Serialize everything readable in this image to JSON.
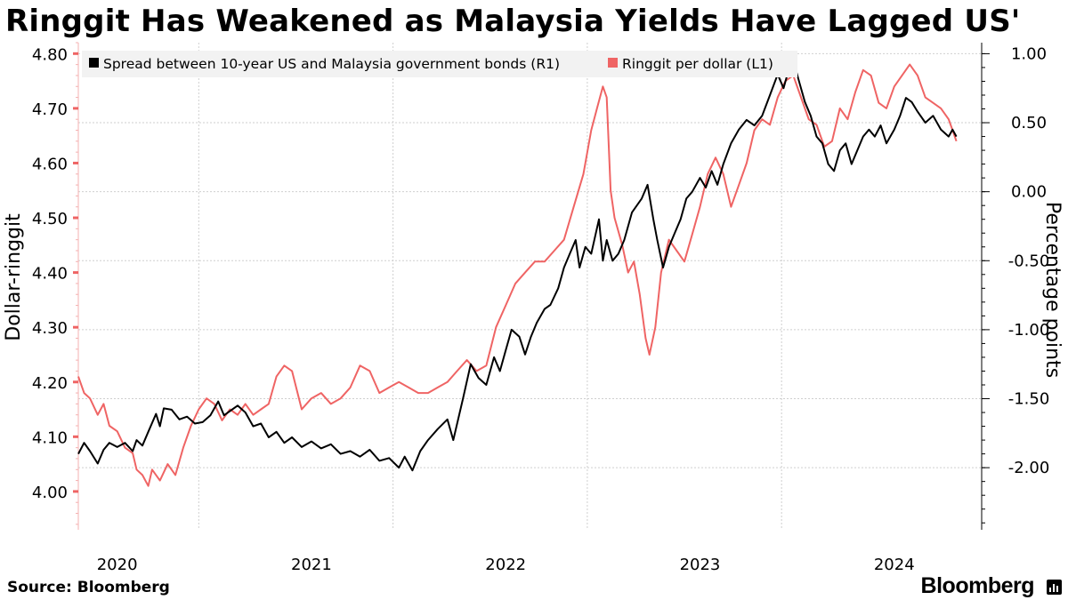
{
  "title": "Ringgit Has Weakened as Malaysia Yields Have Lagged US'",
  "source": "Source: Bloomberg",
  "brand": "Bloomberg",
  "colors": {
    "spread": "#000000",
    "ringgit": "#ef6464",
    "grid": "#cfcfcf",
    "legend_bg": "#f2f2f2"
  },
  "chart_data": {
    "type": "line",
    "x_range": [
      2019.8,
      2024.45
    ],
    "x_ticks": [
      {
        "label": "2020",
        "x": 2020.0
      },
      {
        "label": "2021",
        "x": 2021.0
      },
      {
        "label": "2022",
        "x": 2022.0
      },
      {
        "label": "2023",
        "x": 2023.0
      },
      {
        "label": "2024",
        "x": 2024.0
      }
    ],
    "x_separators": [
      2020.42,
      2021.42,
      2022.42,
      2023.42
    ],
    "left_axis": {
      "label": "Dollar-ringgit",
      "range": [
        3.93,
        4.82
      ],
      "ticks": [
        "4.00",
        "4.10",
        "4.20",
        "4.30",
        "4.40",
        "4.50",
        "4.60",
        "4.70",
        "4.80"
      ]
    },
    "right_axis": {
      "label": "Percentage points",
      "range": [
        -2.45,
        1.08
      ],
      "ticks": [
        "-2.00",
        "-1.50",
        "-1.00",
        "-0.50",
        "0.00",
        "0.50",
        "1.00"
      ]
    },
    "series": [
      {
        "name": "Spread between 10-year US and Malaysia government bonds (R1)",
        "axis": "right",
        "points": [
          [
            2019.8,
            -1.9
          ],
          [
            2019.83,
            -1.82
          ],
          [
            2019.86,
            -1.88
          ],
          [
            2019.9,
            -1.97
          ],
          [
            2019.93,
            -1.87
          ],
          [
            2019.96,
            -1.82
          ],
          [
            2020.0,
            -1.85
          ],
          [
            2020.04,
            -1.82
          ],
          [
            2020.08,
            -1.88
          ],
          [
            2020.1,
            -1.8
          ],
          [
            2020.13,
            -1.84
          ],
          [
            2020.16,
            -1.74
          ],
          [
            2020.2,
            -1.61
          ],
          [
            2020.22,
            -1.7
          ],
          [
            2020.24,
            -1.57
          ],
          [
            2020.28,
            -1.58
          ],
          [
            2020.32,
            -1.65
          ],
          [
            2020.36,
            -1.63
          ],
          [
            2020.4,
            -1.68
          ],
          [
            2020.44,
            -1.67
          ],
          [
            2020.48,
            -1.62
          ],
          [
            2020.52,
            -1.52
          ],
          [
            2020.55,
            -1.62
          ],
          [
            2020.58,
            -1.59
          ],
          [
            2020.62,
            -1.55
          ],
          [
            2020.66,
            -1.6
          ],
          [
            2020.7,
            -1.7
          ],
          [
            2020.74,
            -1.68
          ],
          [
            2020.78,
            -1.78
          ],
          [
            2020.82,
            -1.74
          ],
          [
            2020.86,
            -1.82
          ],
          [
            2020.9,
            -1.78
          ],
          [
            2020.95,
            -1.85
          ],
          [
            2021.0,
            -1.81
          ],
          [
            2021.05,
            -1.86
          ],
          [
            2021.1,
            -1.83
          ],
          [
            2021.15,
            -1.9
          ],
          [
            2021.2,
            -1.88
          ],
          [
            2021.25,
            -1.92
          ],
          [
            2021.3,
            -1.87
          ],
          [
            2021.35,
            -1.95
          ],
          [
            2021.4,
            -1.93
          ],
          [
            2021.45,
            -2.0
          ],
          [
            2021.48,
            -1.92
          ],
          [
            2021.52,
            -2.02
          ],
          [
            2021.56,
            -1.88
          ],
          [
            2021.6,
            -1.8
          ],
          [
            2021.65,
            -1.72
          ],
          [
            2021.7,
            -1.65
          ],
          [
            2021.73,
            -1.8
          ],
          [
            2021.78,
            -1.5
          ],
          [
            2021.82,
            -1.25
          ],
          [
            2021.86,
            -1.35
          ],
          [
            2021.9,
            -1.4
          ],
          [
            2021.94,
            -1.2
          ],
          [
            2021.97,
            -1.3
          ],
          [
            2022.0,
            -1.15
          ],
          [
            2022.03,
            -1.0
          ],
          [
            2022.07,
            -1.05
          ],
          [
            2022.1,
            -1.18
          ],
          [
            2022.13,
            -1.05
          ],
          [
            2022.16,
            -0.95
          ],
          [
            2022.2,
            -0.85
          ],
          [
            2022.23,
            -0.82
          ],
          [
            2022.27,
            -0.7
          ],
          [
            2022.3,
            -0.55
          ],
          [
            2022.33,
            -0.45
          ],
          [
            2022.36,
            -0.35
          ],
          [
            2022.38,
            -0.55
          ],
          [
            2022.41,
            -0.4
          ],
          [
            2022.44,
            -0.45
          ],
          [
            2022.48,
            -0.2
          ],
          [
            2022.5,
            -0.5
          ],
          [
            2022.52,
            -0.35
          ],
          [
            2022.55,
            -0.5
          ],
          [
            2022.58,
            -0.45
          ],
          [
            2022.61,
            -0.35
          ],
          [
            2022.65,
            -0.15
          ],
          [
            2022.7,
            -0.05
          ],
          [
            2022.73,
            0.05
          ],
          [
            2022.76,
            -0.2
          ],
          [
            2022.78,
            -0.35
          ],
          [
            2022.81,
            -0.55
          ],
          [
            2022.84,
            -0.4
          ],
          [
            2022.87,
            -0.3
          ],
          [
            2022.9,
            -0.2
          ],
          [
            2022.93,
            -0.05
          ],
          [
            2022.96,
            0.0
          ],
          [
            2023.0,
            0.1
          ],
          [
            2023.03,
            0.03
          ],
          [
            2023.06,
            0.15
          ],
          [
            2023.09,
            0.05
          ],
          [
            2023.12,
            0.2
          ],
          [
            2023.16,
            0.35
          ],
          [
            2023.2,
            0.45
          ],
          [
            2023.24,
            0.52
          ],
          [
            2023.28,
            0.48
          ],
          [
            2023.32,
            0.55
          ],
          [
            2023.36,
            0.7
          ],
          [
            2023.4,
            0.85
          ],
          [
            2023.43,
            0.75
          ],
          [
            2023.46,
            0.9
          ],
          [
            2023.48,
            0.95
          ],
          [
            2023.51,
            0.8
          ],
          [
            2023.54,
            0.65
          ],
          [
            2023.57,
            0.55
          ],
          [
            2023.6,
            0.4
          ],
          [
            2023.63,
            0.35
          ],
          [
            2023.66,
            0.2
          ],
          [
            2023.69,
            0.15
          ],
          [
            2023.72,
            0.3
          ],
          [
            2023.75,
            0.35
          ],
          [
            2023.78,
            0.2
          ],
          [
            2023.81,
            0.3
          ],
          [
            2023.84,
            0.4
          ],
          [
            2023.87,
            0.45
          ],
          [
            2023.9,
            0.4
          ],
          [
            2023.93,
            0.48
          ],
          [
            2023.96,
            0.35
          ],
          [
            2024.0,
            0.45
          ],
          [
            2024.03,
            0.55
          ],
          [
            2024.06,
            0.68
          ],
          [
            2024.09,
            0.65
          ],
          [
            2024.12,
            0.58
          ],
          [
            2024.16,
            0.5
          ],
          [
            2024.2,
            0.55
          ],
          [
            2024.24,
            0.45
          ],
          [
            2024.28,
            0.4
          ],
          [
            2024.3,
            0.45
          ],
          [
            2024.32,
            0.4
          ]
        ]
      },
      {
        "name": "Ringgit per dollar (L1)",
        "axis": "left",
        "points": [
          [
            2019.8,
            4.21
          ],
          [
            2019.83,
            4.18
          ],
          [
            2019.86,
            4.17
          ],
          [
            2019.9,
            4.14
          ],
          [
            2019.93,
            4.16
          ],
          [
            2019.96,
            4.12
          ],
          [
            2020.0,
            4.11
          ],
          [
            2020.04,
            4.08
          ],
          [
            2020.08,
            4.07
          ],
          [
            2020.1,
            4.04
          ],
          [
            2020.13,
            4.03
          ],
          [
            2020.16,
            4.01
          ],
          [
            2020.18,
            4.04
          ],
          [
            2020.22,
            4.02
          ],
          [
            2020.26,
            4.05
          ],
          [
            2020.3,
            4.03
          ],
          [
            2020.34,
            4.08
          ],
          [
            2020.38,
            4.12
          ],
          [
            2020.42,
            4.15
          ],
          [
            2020.46,
            4.17
          ],
          [
            2020.5,
            4.16
          ],
          [
            2020.54,
            4.13
          ],
          [
            2020.58,
            4.15
          ],
          [
            2020.62,
            4.14
          ],
          [
            2020.66,
            4.16
          ],
          [
            2020.7,
            4.14
          ],
          [
            2020.74,
            4.15
          ],
          [
            2020.78,
            4.16
          ],
          [
            2020.82,
            4.21
          ],
          [
            2020.86,
            4.23
          ],
          [
            2020.9,
            4.22
          ],
          [
            2020.95,
            4.15
          ],
          [
            2021.0,
            4.17
          ],
          [
            2021.05,
            4.18
          ],
          [
            2021.1,
            4.16
          ],
          [
            2021.15,
            4.17
          ],
          [
            2021.2,
            4.19
          ],
          [
            2021.25,
            4.23
          ],
          [
            2021.3,
            4.22
          ],
          [
            2021.35,
            4.18
          ],
          [
            2021.4,
            4.19
          ],
          [
            2021.45,
            4.2
          ],
          [
            2021.5,
            4.19
          ],
          [
            2021.55,
            4.18
          ],
          [
            2021.6,
            4.18
          ],
          [
            2021.65,
            4.19
          ],
          [
            2021.7,
            4.2
          ],
          [
            2021.75,
            4.22
          ],
          [
            2021.8,
            4.24
          ],
          [
            2021.85,
            4.22
          ],
          [
            2021.9,
            4.23
          ],
          [
            2021.95,
            4.3
          ],
          [
            2022.0,
            4.34
          ],
          [
            2022.05,
            4.38
          ],
          [
            2022.1,
            4.4
          ],
          [
            2022.15,
            4.42
          ],
          [
            2022.2,
            4.42
          ],
          [
            2022.25,
            4.44
          ],
          [
            2022.3,
            4.46
          ],
          [
            2022.35,
            4.52
          ],
          [
            2022.4,
            4.58
          ],
          [
            2022.44,
            4.66
          ],
          [
            2022.47,
            4.7
          ],
          [
            2022.5,
            4.74
          ],
          [
            2022.52,
            4.72
          ],
          [
            2022.54,
            4.55
          ],
          [
            2022.56,
            4.5
          ],
          [
            2022.6,
            4.45
          ],
          [
            2022.63,
            4.4
          ],
          [
            2022.66,
            4.42
          ],
          [
            2022.69,
            4.36
          ],
          [
            2022.72,
            4.28
          ],
          [
            2022.74,
            4.25
          ],
          [
            2022.77,
            4.3
          ],
          [
            2022.8,
            4.4
          ],
          [
            2022.84,
            4.46
          ],
          [
            2022.88,
            4.44
          ],
          [
            2022.92,
            4.42
          ],
          [
            2022.96,
            4.47
          ],
          [
            2023.0,
            4.52
          ],
          [
            2023.04,
            4.58
          ],
          [
            2023.08,
            4.61
          ],
          [
            2023.12,
            4.58
          ],
          [
            2023.16,
            4.52
          ],
          [
            2023.2,
            4.56
          ],
          [
            2023.24,
            4.6
          ],
          [
            2023.28,
            4.66
          ],
          [
            2023.32,
            4.68
          ],
          [
            2023.36,
            4.67
          ],
          [
            2023.4,
            4.72
          ],
          [
            2023.44,
            4.75
          ],
          [
            2023.48,
            4.76
          ],
          [
            2023.52,
            4.72
          ],
          [
            2023.56,
            4.68
          ],
          [
            2023.6,
            4.67
          ],
          [
            2023.64,
            4.63
          ],
          [
            2023.68,
            4.64
          ],
          [
            2023.72,
            4.7
          ],
          [
            2023.76,
            4.68
          ],
          [
            2023.8,
            4.73
          ],
          [
            2023.84,
            4.77
          ],
          [
            2023.88,
            4.76
          ],
          [
            2023.92,
            4.71
          ],
          [
            2023.96,
            4.7
          ],
          [
            2024.0,
            4.74
          ],
          [
            2024.04,
            4.76
          ],
          [
            2024.08,
            4.78
          ],
          [
            2024.12,
            4.76
          ],
          [
            2024.16,
            4.72
          ],
          [
            2024.2,
            4.71
          ],
          [
            2024.24,
            4.7
          ],
          [
            2024.28,
            4.68
          ],
          [
            2024.3,
            4.66
          ],
          [
            2024.32,
            4.64
          ]
        ]
      }
    ]
  }
}
